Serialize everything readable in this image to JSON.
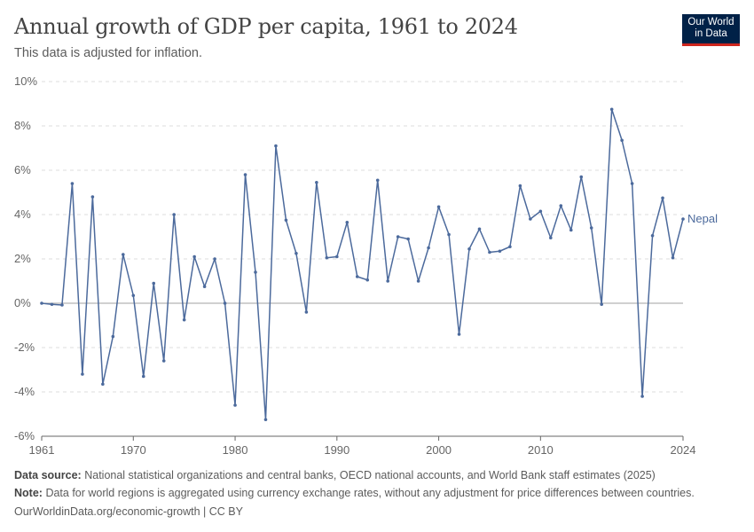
{
  "header": {
    "title": "Annual growth of GDP per capita, 1961 to 2024",
    "subtitle": "This data is adjusted for inflation.",
    "logo_line1": "Our World",
    "logo_line2": "in Data"
  },
  "footer": {
    "source_label": "Data source:",
    "source_text": "National statistical organizations and central banks, OECD national accounts, and World Bank staff estimates (2025)",
    "note_label": "Note:",
    "note_text": "Data for world regions is aggregated using currency exchange rates, without any adjustment for price differences between countries.",
    "credit": "OurWorldinData.org/economic-growth | CC BY"
  },
  "colors": {
    "line": "#4c6a9c",
    "grid": "#dddddd",
    "axis": "#666666",
    "zero": "#a1a1a1",
    "logo_bg": "#002147",
    "logo_accent": "#ce261e"
  },
  "chart_data": {
    "type": "line",
    "title": "Annual growth of GDP per capita, 1961 to 2024",
    "subtitle": "This data is adjusted for inflation.",
    "xlim": [
      1961,
      2024
    ],
    "ylim": [
      -6,
      10
    ],
    "y_ticks": [
      -6,
      -4,
      -2,
      0,
      2,
      4,
      6,
      8,
      10
    ],
    "y_tick_labels": [
      "-6%",
      "-4%",
      "-2%",
      "0%",
      "2%",
      "4%",
      "6%",
      "8%",
      "10%"
    ],
    "x_ticks": [
      1961,
      1970,
      1980,
      1990,
      2000,
      2010,
      2024
    ],
    "x_tick_labels": [
      "1961",
      "1970",
      "1980",
      "1990",
      "2000",
      "2010",
      "2024"
    ],
    "grid": "horizontal dashed",
    "series": [
      {
        "name": "Nepal",
        "x": [
          1961,
          1962,
          1963,
          1964,
          1965,
          1966,
          1967,
          1968,
          1969,
          1970,
          1971,
          1972,
          1973,
          1974,
          1975,
          1976,
          1977,
          1978,
          1979,
          1980,
          1981,
          1982,
          1983,
          1984,
          1985,
          1986,
          1987,
          1988,
          1989,
          1990,
          1991,
          1992,
          1993,
          1994,
          1995,
          1996,
          1997,
          1998,
          1999,
          2000,
          2001,
          2002,
          2003,
          2004,
          2005,
          2006,
          2007,
          2008,
          2009,
          2010,
          2011,
          2012,
          2013,
          2014,
          2015,
          2016,
          2017,
          2018,
          2019,
          2020,
          2021,
          2022,
          2023,
          2024
        ],
        "values": [
          0.0,
          -0.05,
          -0.08,
          5.4,
          -3.2,
          4.8,
          -3.65,
          -1.5,
          2.2,
          0.35,
          -3.3,
          0.9,
          -2.6,
          4.0,
          -0.75,
          2.1,
          0.75,
          2.0,
          0.0,
          -4.6,
          5.8,
          1.4,
          -5.25,
          7.1,
          3.75,
          2.25,
          -0.4,
          5.45,
          2.05,
          2.1,
          3.65,
          1.2,
          1.05,
          5.55,
          1.0,
          3.0,
          2.9,
          1.0,
          2.5,
          4.35,
          3.1,
          -1.4,
          2.45,
          3.35,
          2.3,
          2.35,
          2.55,
          5.3,
          3.8,
          4.15,
          2.95,
          4.4,
          3.3,
          5.7,
          3.4,
          -0.05,
          8.75,
          7.35,
          5.4,
          -4.2,
          3.05,
          4.75,
          2.05,
          3.8
        ]
      }
    ]
  }
}
